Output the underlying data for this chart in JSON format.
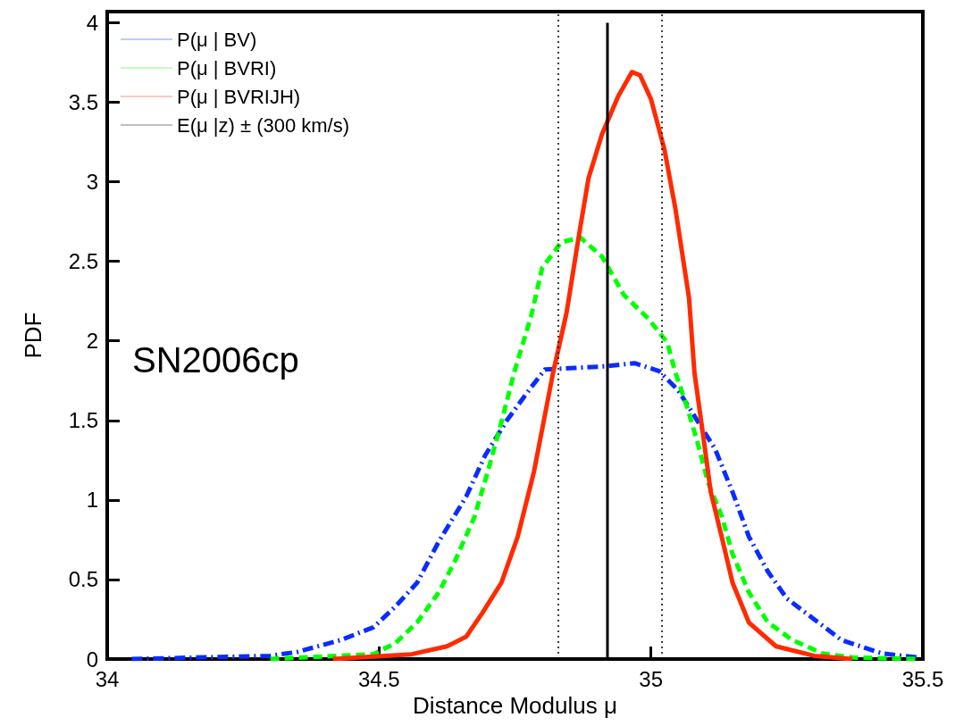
{
  "chart_data": {
    "type": "line",
    "xlabel": "Distance Modulus μ",
    "ylabel": "PDF",
    "annotations": [
      "SN2006cp"
    ],
    "xlim": [
      34,
      35.5
    ],
    "xticks": [
      34,
      34.5,
      35,
      35.5
    ],
    "ylim": [
      0,
      4.07
    ],
    "yticks": [
      0,
      0.5,
      1,
      1.5,
      2,
      2.5,
      3,
      3.5,
      4
    ],
    "grid": false,
    "legend": "top left",
    "marker": "none",
    "series": [
      {
        "name": "P(μ | BV)",
        "color": "#0a2cff",
        "line_style": "dashdot",
        "x": [
          34.045,
          34.3,
          34.35,
          34.43,
          34.49,
          34.53,
          34.57,
          34.61,
          34.66,
          34.695,
          34.735,
          34.78,
          34.805,
          34.86,
          34.915,
          34.97,
          35.015,
          35.05,
          35.085,
          35.118,
          35.15,
          35.18,
          35.215,
          35.25,
          35.3,
          35.35,
          35.425,
          35.49
        ],
        "values": [
          0,
          0.02,
          0.045,
          0.12,
          0.2,
          0.33,
          0.48,
          0.74,
          1.02,
          1.28,
          1.5,
          1.71,
          1.82,
          1.83,
          1.84,
          1.86,
          1.81,
          1.69,
          1.5,
          1.32,
          1.05,
          0.77,
          0.55,
          0.38,
          0.25,
          0.12,
          0.035,
          0.01
        ]
      },
      {
        "name": "P(μ | BVRI)",
        "color": "#00ff00",
        "line_style": "dashed",
        "x": [
          34.3,
          34.49,
          34.53,
          34.57,
          34.61,
          34.64,
          34.675,
          34.7,
          34.725,
          34.75,
          34.78,
          34.8,
          34.835,
          34.87,
          34.91,
          34.95,
          34.995,
          35.03,
          35.045,
          35.065,
          35.085,
          35.105,
          35.13,
          35.15,
          35.18,
          35.215,
          35.26,
          35.315,
          35.37,
          35.49
        ],
        "values": [
          0,
          0.03,
          0.1,
          0.23,
          0.42,
          0.62,
          0.89,
          1.18,
          1.49,
          1.82,
          2.16,
          2.46,
          2.62,
          2.65,
          2.53,
          2.29,
          2.14,
          1.99,
          1.8,
          1.6,
          1.37,
          1.11,
          0.9,
          0.66,
          0.42,
          0.23,
          0.12,
          0.035,
          0.01,
          0
        ]
      },
      {
        "name": "P(μ | BVRIJH)",
        "color": "#ff2a00",
        "line_style": "solid",
        "x": [
          34.415,
          34.56,
          34.625,
          34.66,
          34.69,
          34.725,
          34.755,
          34.785,
          34.82,
          34.845,
          34.865,
          34.885,
          34.91,
          34.94,
          34.965,
          34.98,
          35.0,
          35.025,
          35.045,
          35.07,
          35.08,
          35.095,
          35.11,
          35.13,
          35.15,
          35.18,
          35.23,
          35.3,
          35.37
        ],
        "values": [
          0,
          0.03,
          0.08,
          0.14,
          0.29,
          0.48,
          0.77,
          1.18,
          1.8,
          2.18,
          2.61,
          3.02,
          3.3,
          3.54,
          3.69,
          3.67,
          3.52,
          3.2,
          2.83,
          2.27,
          1.8,
          1.43,
          1.05,
          0.77,
          0.48,
          0.23,
          0.08,
          0.02,
          0
        ]
      },
      {
        "name": "E(μ |z) ± (300 km/s)",
        "color": "#000000",
        "line_style": "solid",
        "x": [
          34.92,
          34.92
        ],
        "values": [
          0,
          4
        ]
      }
    ],
    "ref_lines": [
      {
        "axis": "x",
        "value": 34.825,
        "color": "#000000",
        "line_style": "dotted"
      },
      {
        "axis": "x",
        "value": 35.02,
        "color": "#000000",
        "line_style": "dotted"
      }
    ]
  }
}
